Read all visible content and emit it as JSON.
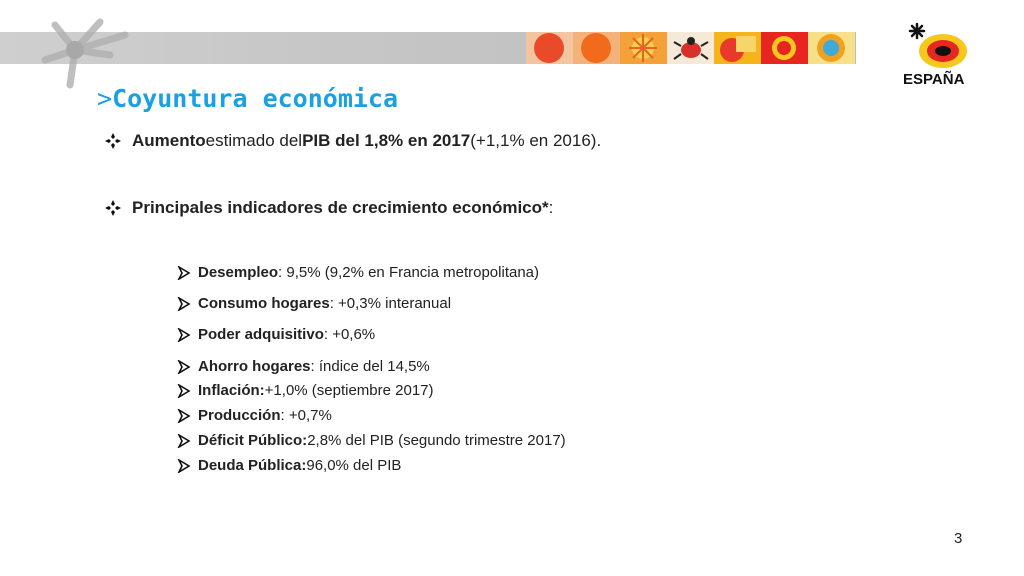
{
  "header": {
    "title_prefix": ">",
    "title": "Coyuntura económica",
    "logo_text": "ESPAÑA",
    "logo_icon": "spain-tourism-logo-icon"
  },
  "bullets": [
    {
      "parts": [
        {
          "text": "Aumento",
          "bold": true
        },
        {
          "text": " estimado del ",
          "bold": false
        },
        {
          "text": "PIB del 1,8% en 2017",
          "bold": true
        },
        {
          "text": " (+1,1% en 2016).",
          "bold": false
        }
      ]
    },
    {
      "parts": [
        {
          "text": "Principales indicadores de crecimiento económico*",
          "bold": true
        },
        {
          "text": ":",
          "bold": false
        }
      ]
    }
  ],
  "indicators": [
    {
      "label": "Desempleo",
      "rest": ": 9,5% (9,2% en Francia metropolitana)"
    },
    {
      "label": "Consumo hogares",
      "rest": ": +0,3% interanual"
    },
    {
      "label": "Poder adquisitivo",
      "rest": ": +0,6%"
    },
    {
      "label": "Ahorro hogares",
      "rest": ": índice del 14,5%"
    },
    {
      "label": "Inflación:",
      "rest": " +1,0% (septiembre 2017)"
    },
    {
      "label": "Producción",
      "rest": ": +0,7%"
    },
    {
      "label": "Déficit Público:",
      "rest": " 2,8% del PIB (segundo trimestre 2017)"
    },
    {
      "label": "Deuda Pública:",
      "rest": " 96,0% del PIB"
    }
  ],
  "page_number": "3",
  "colors": {
    "title": "#1ba1e2",
    "text": "#222222",
    "banner": "#c8c8c8"
  }
}
